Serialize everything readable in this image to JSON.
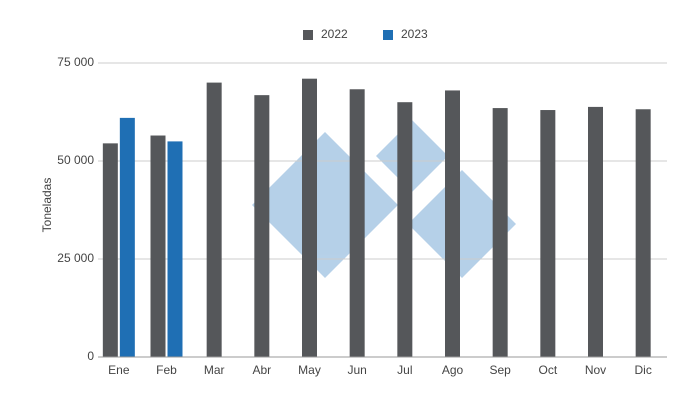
{
  "chart_data": {
    "type": "bar",
    "y_label": "Toneladas",
    "categories": [
      "Ene",
      "Feb",
      "Mar",
      "Abr",
      "May",
      "Jun",
      "Jul",
      "Ago",
      "Sep",
      "Oct",
      "Nov",
      "Dic"
    ],
    "series": [
      {
        "name": "2022",
        "color": "#55575a",
        "values": [
          54500,
          56500,
          70000,
          66800,
          71000,
          68300,
          65000,
          68000,
          63500,
          63000,
          63800,
          63200
        ]
      },
      {
        "name": "2023",
        "color": "#1f6fb4",
        "values": [
          61000,
          55000,
          null,
          null,
          null,
          null,
          null,
          null,
          null,
          null,
          null,
          null
        ]
      }
    ],
    "ylim": [
      0,
      75000
    ],
    "yticks": [
      0,
      {
        "value": 25000,
        "label": "25 000"
      },
      {
        "value": 50000,
        "label": "50 000"
      },
      {
        "value": 75000,
        "label": "75 000"
      }
    ],
    "grid": true,
    "legend": "top"
  }
}
